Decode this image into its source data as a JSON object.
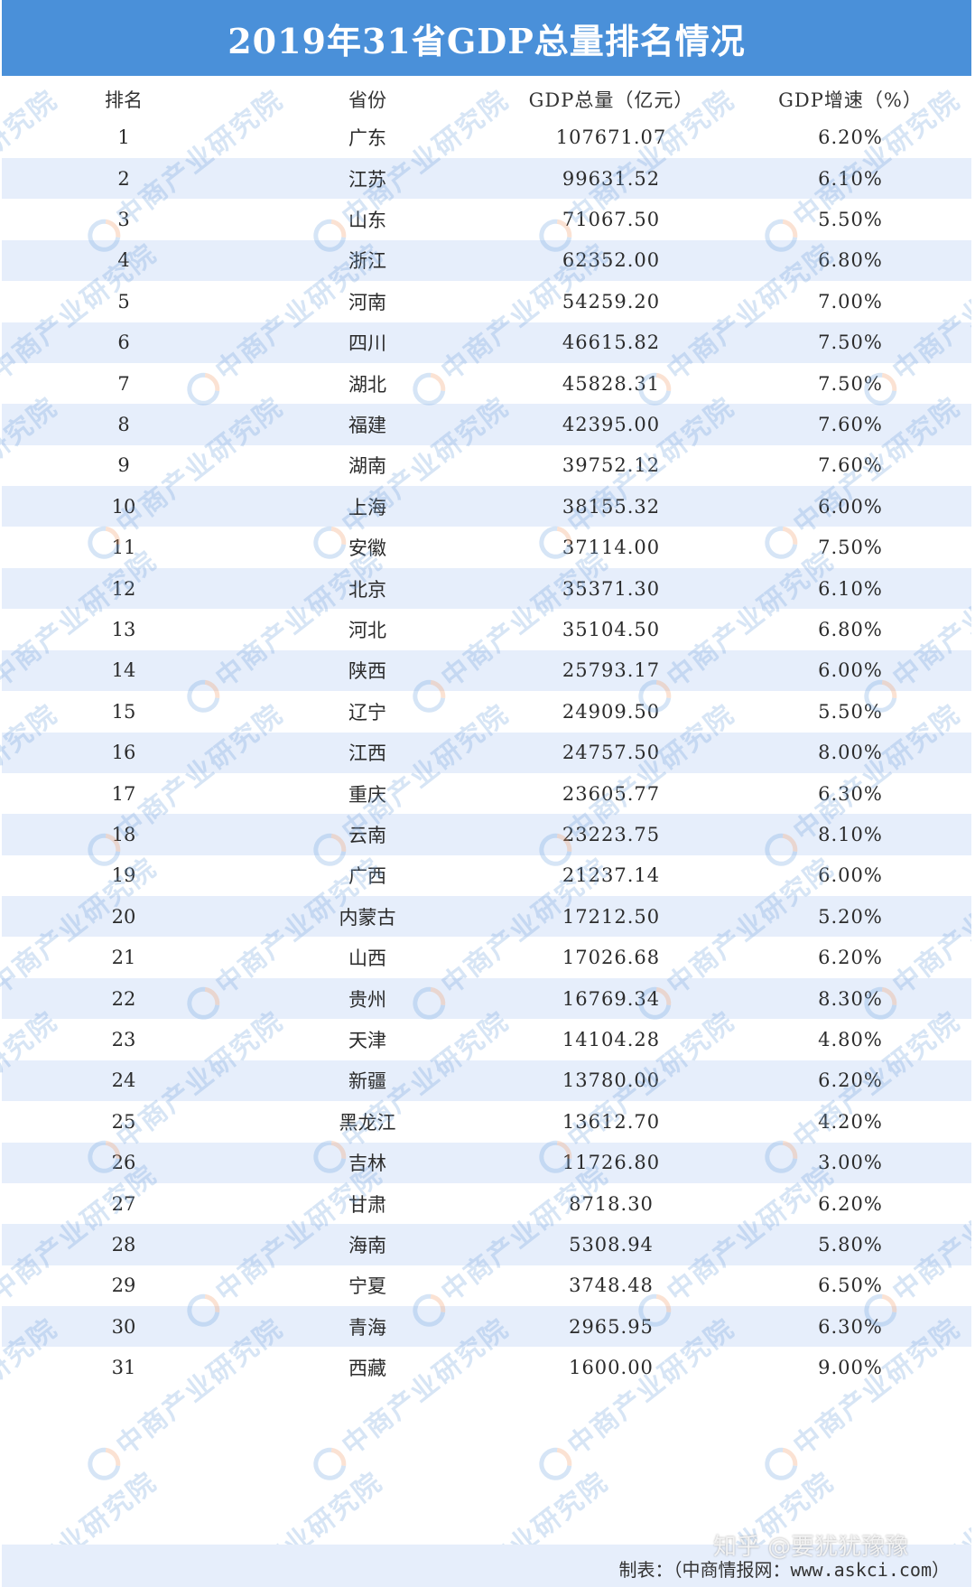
{
  "title": "2019年31省GDP总量排名情况",
  "colors": {
    "header_bar": "#4a90d9",
    "row_alt": "#e6eefb",
    "watermark": "#6ea0dc"
  },
  "watermark_text": "中商产业研究院",
  "source_text": "制表：（中商情报网：www.askci.com）",
  "credit_text": "知乎 @要犹犹豫豫",
  "chart_data": {
    "type": "table",
    "columns": [
      "排名",
      "省份",
      "GDP总量（亿元）",
      "GDP增速（%）"
    ],
    "rows": [
      [
        "1",
        "广东",
        "107671.07",
        "6.20%"
      ],
      [
        "2",
        "江苏",
        "99631.52",
        "6.10%"
      ],
      [
        "3",
        "山东",
        "71067.50",
        "5.50%"
      ],
      [
        "4",
        "浙江",
        "62352.00",
        "6.80%"
      ],
      [
        "5",
        "河南",
        "54259.20",
        "7.00%"
      ],
      [
        "6",
        "四川",
        "46615.82",
        "7.50%"
      ],
      [
        "7",
        "湖北",
        "45828.31",
        "7.50%"
      ],
      [
        "8",
        "福建",
        "42395.00",
        "7.60%"
      ],
      [
        "9",
        "湖南",
        "39752.12",
        "7.60%"
      ],
      [
        "10",
        "上海",
        "38155.32",
        "6.00%"
      ],
      [
        "11",
        "安徽",
        "37114.00",
        "7.50%"
      ],
      [
        "12",
        "北京",
        "35371.30",
        "6.10%"
      ],
      [
        "13",
        "河北",
        "35104.50",
        "6.80%"
      ],
      [
        "14",
        "陕西",
        "25793.17",
        "6.00%"
      ],
      [
        "15",
        "辽宁",
        "24909.50",
        "5.50%"
      ],
      [
        "16",
        "江西",
        "24757.50",
        "8.00%"
      ],
      [
        "17",
        "重庆",
        "23605.77",
        "6.30%"
      ],
      [
        "18",
        "云南",
        "23223.75",
        "8.10%"
      ],
      [
        "19",
        "广西",
        "21237.14",
        "6.00%"
      ],
      [
        "20",
        "内蒙古",
        "17212.50",
        "5.20%"
      ],
      [
        "21",
        "山西",
        "17026.68",
        "6.20%"
      ],
      [
        "22",
        "贵州",
        "16769.34",
        "8.30%"
      ],
      [
        "23",
        "天津",
        "14104.28",
        "4.80%"
      ],
      [
        "24",
        "新疆",
        "13780.00",
        "6.20%"
      ],
      [
        "25",
        "黑龙江",
        "13612.70",
        "4.20%"
      ],
      [
        "26",
        "吉林",
        "11726.80",
        "3.00%"
      ],
      [
        "27",
        "甘肃",
        "8718.30",
        "6.20%"
      ],
      [
        "28",
        "海南",
        "5308.94",
        "5.80%"
      ],
      [
        "29",
        "宁夏",
        "3748.48",
        "6.50%"
      ],
      [
        "30",
        "青海",
        "2965.95",
        "6.30%"
      ],
      [
        "31",
        "西藏",
        "1600.00",
        "9.00%"
      ]
    ]
  }
}
